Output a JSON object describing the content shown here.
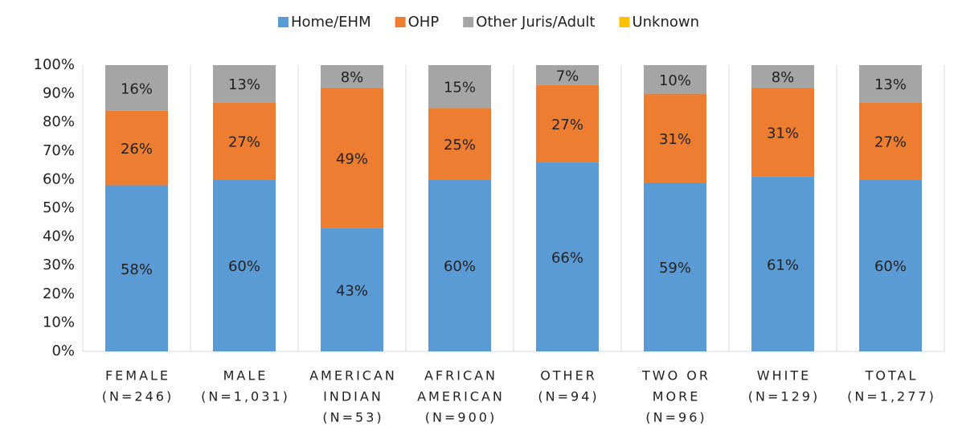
{
  "chart_data": {
    "type": "stacked_bar",
    "categories": [
      [
        "FEMALE",
        "(N=246)"
      ],
      [
        "MALE",
        "(N=1,031)"
      ],
      [
        "AMERICAN",
        "INDIAN",
        "(N=53)"
      ],
      [
        "AFRICAN",
        "AMERICAN",
        "(N=900)"
      ],
      [
        "OTHER",
        "(N=94)"
      ],
      [
        "TWO OR",
        "MORE",
        "(N=96)"
      ],
      [
        "WHITE",
        "(N=129)"
      ],
      [
        "TOTAL",
        "(N=1,277)"
      ]
    ],
    "series": [
      {
        "name": "Home/EHM",
        "color": "#5b9bd5",
        "values": [
          58,
          60,
          43,
          60,
          66,
          59,
          61,
          60
        ],
        "value_labels": [
          "58%",
          "60%",
          "43%",
          "60%",
          "66%",
          "59%",
          "61%",
          "60%"
        ]
      },
      {
        "name": "OHP",
        "color": "#ed7d31",
        "values": [
          26,
          27,
          49,
          25,
          27,
          31,
          31,
          27
        ],
        "value_labels": [
          "26%",
          "27%",
          "49%",
          "25%",
          "27%",
          "31%",
          "31%",
          "27%"
        ]
      },
      {
        "name": "Other Juris/Adult",
        "color": "#a5a5a5",
        "values": [
          16,
          13,
          8,
          15,
          7,
          10,
          8,
          13
        ],
        "value_labels": [
          "16%",
          "13%",
          "8%",
          "15%",
          "7%",
          "10%",
          "8%",
          "13%"
        ]
      },
      {
        "name": "Unknown",
        "color": "#ffc000",
        "values": [
          0,
          0,
          0,
          0,
          0,
          0,
          0,
          0
        ]
      }
    ],
    "ylim": [
      0,
      100
    ],
    "yticks": [
      {
        "value": 0,
        "label": "0%"
      },
      {
        "value": 10,
        "label": "10%"
      },
      {
        "value": 20,
        "label": "20%"
      },
      {
        "value": 30,
        "label": "30%"
      },
      {
        "value": 40,
        "label": "40%"
      },
      {
        "value": 50,
        "label": "50%"
      },
      {
        "value": 60,
        "label": "60%"
      },
      {
        "value": 70,
        "label": "70%"
      },
      {
        "value": 80,
        "label": "80%"
      },
      {
        "value": 90,
        "label": "90%"
      },
      {
        "value": 100,
        "label": "100%"
      }
    ],
    "legend": "top"
  }
}
